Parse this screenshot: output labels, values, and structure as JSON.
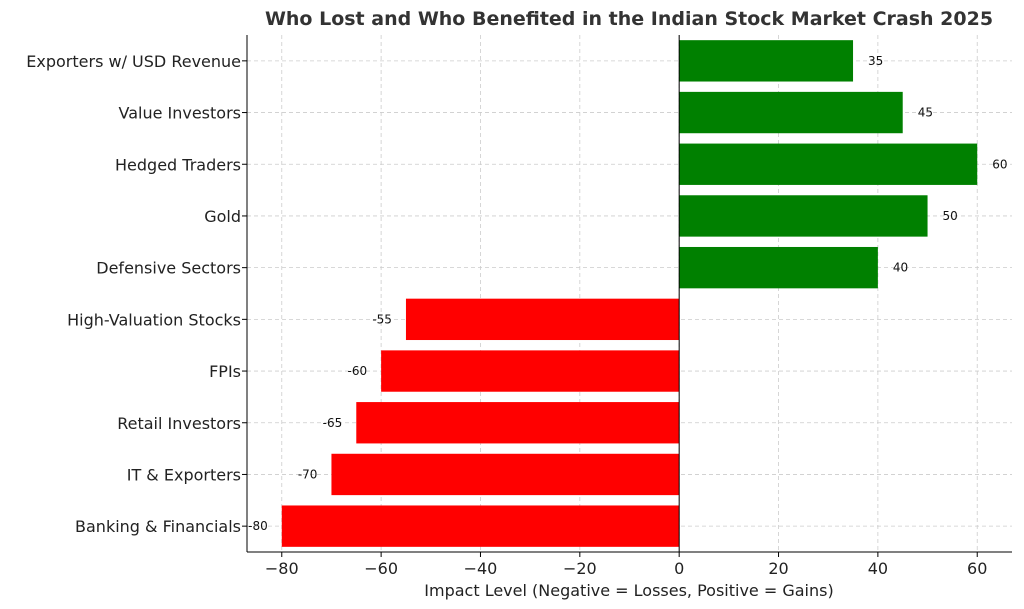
{
  "chart_data": {
    "type": "bar",
    "orientation": "horizontal",
    "title": "Who Lost and Who Benefited in the Indian Stock Market Crash 2025",
    "xlabel": "Impact Level (Negative = Losses, Positive = Gains)",
    "ylabel": "",
    "categories": [
      "Banking & Financials",
      "IT & Exporters",
      "Retail Investors",
      "FPIs",
      "High-Valuation Stocks",
      "Defensive Sectors",
      "Gold",
      "Hedged Traders",
      "Value Investors",
      "Exporters w/ USD Revenue"
    ],
    "values": [
      -80,
      -70,
      -65,
      -60,
      -55,
      40,
      50,
      60,
      45,
      35
    ],
    "xlim": [
      -87,
      67
    ],
    "xticks": [
      -80,
      -60,
      -40,
      -20,
      0,
      20,
      40,
      60
    ],
    "xtick_labels": [
      "−80",
      "−60",
      "−40",
      "−20",
      "0",
      "20",
      "40",
      "60"
    ],
    "grid": true,
    "colors": {
      "negative": "#ff0000",
      "positive": "#008000"
    }
  }
}
